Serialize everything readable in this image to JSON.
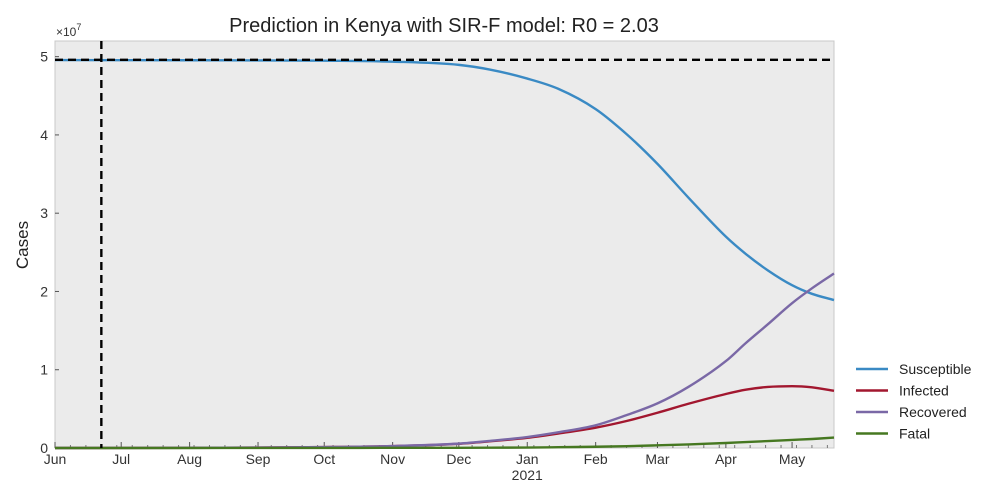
{
  "chart_data": {
    "type": "line",
    "title": "Prediction in Kenya with SIR-F model: R0 = 2.03",
    "xlabel": "",
    "ylabel": "Cases",
    "y_multiplier": "×10",
    "y_multiplier_exp": "7",
    "ylim": [
      0,
      52000000
    ],
    "y_ticks": [
      0,
      10000000,
      20000000,
      30000000,
      40000000,
      50000000
    ],
    "y_tick_labels": [
      "0",
      "1",
      "2",
      "3",
      "4",
      "5"
    ],
    "x_range": [
      "2020-06-01",
      "2021-05-20"
    ],
    "x_ticks": [
      {
        "date": "2020-06-01",
        "label": "Jun"
      },
      {
        "date": "2020-07-01",
        "label": "Jul"
      },
      {
        "date": "2020-08-01",
        "label": "Aug"
      },
      {
        "date": "2020-09-01",
        "label": "Sep"
      },
      {
        "date": "2020-10-01",
        "label": "Oct"
      },
      {
        "date": "2020-11-01",
        "label": "Nov"
      },
      {
        "date": "2020-12-01",
        "label": "Dec"
      },
      {
        "date": "2021-01-01",
        "label": "Jan"
      },
      {
        "date": "2021-02-01",
        "label": "Feb"
      },
      {
        "date": "2021-03-01",
        "label": "Mar"
      },
      {
        "date": "2021-04-01",
        "label": "Apr"
      },
      {
        "date": "2021-05-01",
        "label": "May"
      }
    ],
    "x_sublabel": {
      "date": "2021-01-01",
      "label": "2021"
    },
    "reference_lines": {
      "horizontal": 49600000,
      "vertical": "2020-06-22"
    },
    "grid": false,
    "legend_position": "outside-right-bottom",
    "x": [
      "2020-06-01",
      "2020-07-01",
      "2020-08-01",
      "2020-09-01",
      "2020-10-01",
      "2020-11-01",
      "2020-12-01",
      "2020-12-15",
      "2021-01-01",
      "2021-01-15",
      "2021-02-01",
      "2021-02-15",
      "2021-03-01",
      "2021-03-15",
      "2021-04-01",
      "2021-04-10",
      "2021-04-20",
      "2021-05-01",
      "2021-05-10",
      "2021-05-20"
    ],
    "series": [
      {
        "name": "Susceptible",
        "color": "#3a8ac4",
        "values": [
          49560000,
          49550000,
          49540000,
          49520000,
          49480000,
          49360000,
          48950000,
          48350000,
          47200000,
          45900000,
          43300000,
          40100000,
          36300000,
          32000000,
          27000000,
          24800000,
          22700000,
          20800000,
          19700000,
          18900000
        ]
      },
      {
        "name": "Infected",
        "color": "#a2172f",
        "values": [
          0,
          10000,
          30000,
          60000,
          120000,
          250000,
          540000,
          850000,
          1300000,
          1850000,
          2600000,
          3450000,
          4500000,
          5650000,
          6900000,
          7450000,
          7800000,
          7900000,
          7750000,
          7300000
        ]
      },
      {
        "name": "Recovered",
        "color": "#7a68a6",
        "values": [
          0,
          10000,
          30000,
          60000,
          120000,
          250000,
          560000,
          900000,
          1400000,
          2000000,
          2900000,
          4200000,
          5700000,
          7800000,
          11100000,
          13400000,
          15800000,
          18500000,
          20400000,
          22300000
        ]
      },
      {
        "name": "Fatal",
        "color": "#467821",
        "values": [
          0,
          0,
          0,
          10000,
          10000,
          20000,
          30000,
          40000,
          60000,
          100000,
          160000,
          230000,
          340000,
          460000,
          640000,
          760000,
          880000,
          1030000,
          1150000,
          1330000
        ]
      }
    ]
  }
}
